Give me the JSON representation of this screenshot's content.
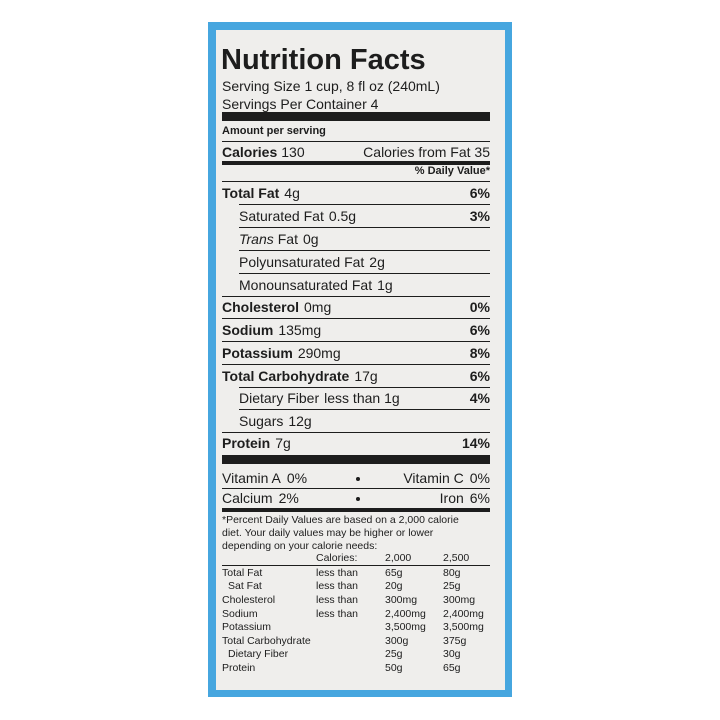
{
  "header": {
    "title": "Nutrition Facts",
    "serving_size": "Serving Size 1 cup, 8 fl oz (240mL)",
    "servings_per_container": "Servings Per Container 4"
  },
  "amount_per_serving": "Amount per serving",
  "calories": {
    "label": "Calories",
    "value": "130",
    "from_fat": "Calories from Fat 35"
  },
  "daily_value_header": "% Daily Value*",
  "nutrients": [
    {
      "name": "Total Fat",
      "amount": "4g",
      "dv": "6%"
    },
    {
      "name": "Saturated Fat",
      "amount": "0.5g",
      "dv": "3%"
    },
    {
      "name_italic": "Trans",
      "name": "Fat",
      "amount": "0g"
    },
    {
      "name": "Polyunsaturated Fat",
      "amount": "2g"
    },
    {
      "name": "Monounsaturated Fat",
      "amount": "1g"
    },
    {
      "name": "Cholesterol",
      "amount": "0mg",
      "dv": "0%"
    },
    {
      "name": "Sodium",
      "amount": "135mg",
      "dv": "6%"
    },
    {
      "name": "Potassium",
      "amount": "290mg",
      "dv": "8%"
    },
    {
      "name": "Total Carbohydrate",
      "amount": "17g",
      "dv": "6%"
    },
    {
      "name": "Dietary Fiber",
      "amount": "less than 1g",
      "dv": "4%"
    },
    {
      "name": "Sugars",
      "amount": "12g"
    },
    {
      "name": "Protein",
      "amount": "7g",
      "dv": "14%"
    }
  ],
  "vitamins": [
    [
      {
        "name": "Vitamin A",
        "dv": "0%"
      },
      {
        "name": "Vitamin C",
        "dv": "0%"
      }
    ],
    [
      {
        "name": "Calcium",
        "dv": "2%"
      },
      {
        "name": "Iron",
        "dv": "6%"
      }
    ]
  ],
  "footnote": [
    "*Percent Daily Values are based on a 2,000 calorie",
    "diet. Your daily values may be higher or lower",
    "depending on your calorie needs:"
  ],
  "daily_values_table": {
    "header": {
      "label": "Calories:",
      "columns": [
        "2,000",
        "2,500"
      ]
    },
    "rows": [
      {
        "nutrient": "Total Fat",
        "qualifier": "less than",
        "values": [
          "65g",
          "80g"
        ]
      },
      {
        "nutrient": "Sat Fat",
        "qualifier": "less than",
        "values": [
          "20g",
          "25g"
        ]
      },
      {
        "nutrient": "Cholesterol",
        "qualifier": "less than",
        "values": [
          "300mg",
          "300mg"
        ]
      },
      {
        "nutrient": "Sodium",
        "qualifier": "less than",
        "values": [
          "2,400mg",
          "2,400mg"
        ]
      },
      {
        "nutrient": "Potassium",
        "values": [
          "3,500mg",
          "3,500mg"
        ]
      },
      {
        "nutrient": "Total Carbohydrate",
        "values": [
          "300g",
          "375g"
        ]
      },
      {
        "nutrient": "Dietary Fiber",
        "values": [
          "25g",
          "30g"
        ]
      },
      {
        "nutrient": "Protein",
        "values": [
          "50g",
          "65g"
        ]
      }
    ]
  }
}
